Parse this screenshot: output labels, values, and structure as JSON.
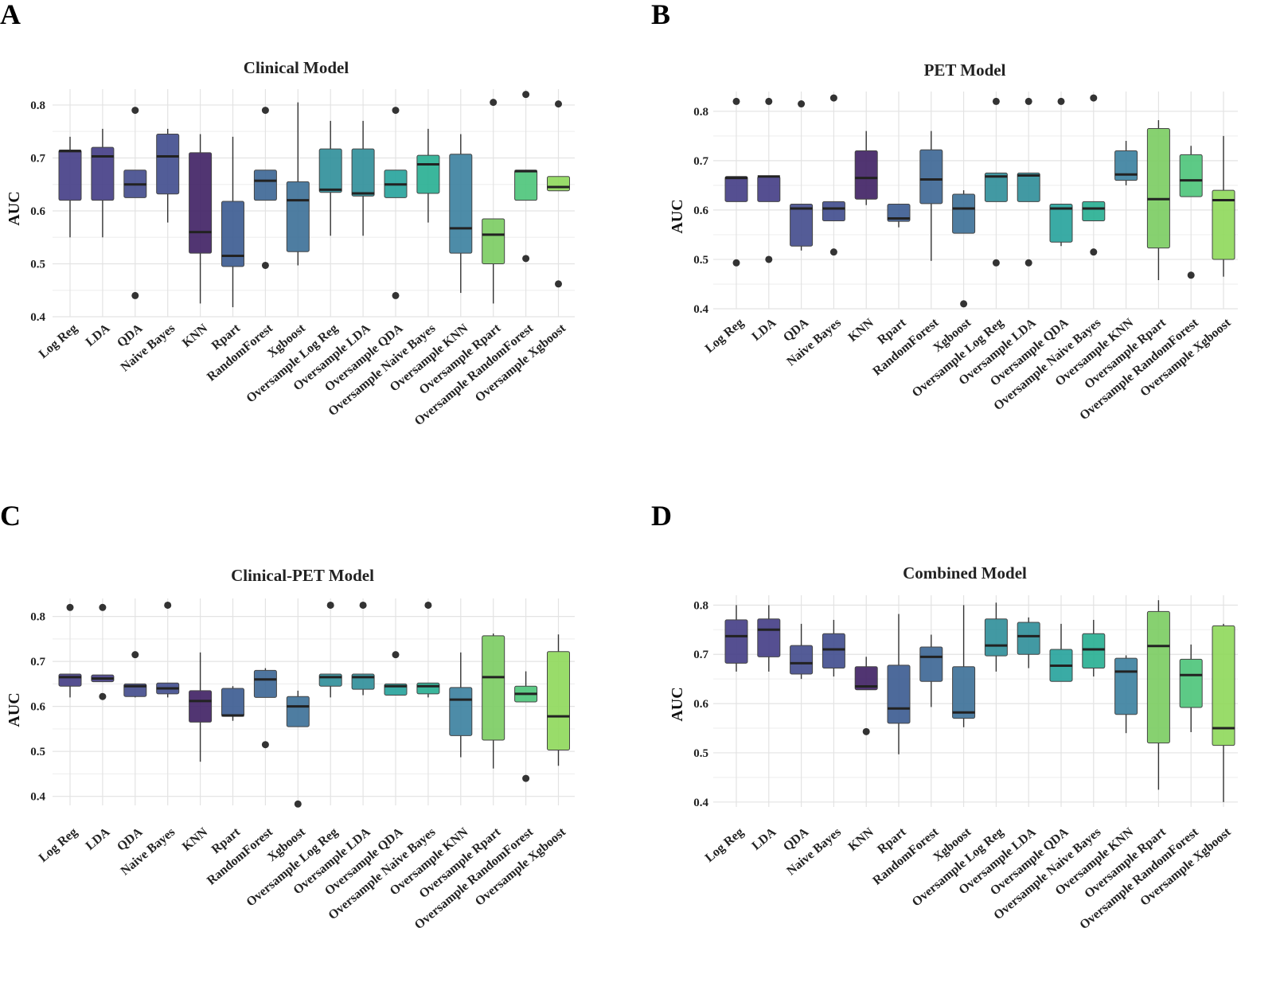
{
  "chart_data": [
    {
      "panel": "A",
      "type": "box",
      "title": "Clinical Model",
      "ylabel": "AUC",
      "ylim": [
        0.4,
        0.83
      ],
      "yticks": [
        0.4,
        0.5,
        0.6,
        0.7,
        0.8
      ],
      "ytick_labels": [
        "0.4",
        "0.5",
        "0.6",
        "0.7",
        "0.8"
      ],
      "categories": [
        "Log Reg",
        "LDA",
        "QDA",
        "Naive Bayes",
        "KNN",
        "Rpart",
        "RandomForest",
        "Xgboost",
        "Oversample Log Reg",
        "Oversample LDA",
        "Oversample QDA",
        "Oversample Naive Bayes",
        "Oversample KNN",
        "Oversample Rpart",
        "Oversample RandomForest",
        "Oversample Xgboost"
      ],
      "boxes": [
        {
          "min": 0.55,
          "q1": 0.62,
          "median": 0.713,
          "q3": 0.715,
          "max": 0.74,
          "outliers": []
        },
        {
          "min": 0.55,
          "q1": 0.62,
          "median": 0.703,
          "q3": 0.72,
          "max": 0.755,
          "outliers": []
        },
        {
          "min": 0.625,
          "q1": 0.625,
          "median": 0.65,
          "q3": 0.677,
          "max": 0.677,
          "outliers": [
            0.79,
            0.44
          ]
        },
        {
          "min": 0.578,
          "q1": 0.632,
          "median": 0.703,
          "q3": 0.745,
          "max": 0.755,
          "outliers": []
        },
        {
          "min": 0.425,
          "q1": 0.52,
          "median": 0.56,
          "q3": 0.71,
          "max": 0.745,
          "outliers": []
        },
        {
          "min": 0.418,
          "q1": 0.495,
          "median": 0.515,
          "q3": 0.618,
          "max": 0.74,
          "outliers": []
        },
        {
          "min": 0.62,
          "q1": 0.62,
          "median": 0.657,
          "q3": 0.677,
          "max": 0.677,
          "outliers": [
            0.79,
            0.497
          ]
        },
        {
          "min": 0.497,
          "q1": 0.523,
          "median": 0.62,
          "q3": 0.655,
          "max": 0.805,
          "outliers": []
        },
        {
          "min": 0.553,
          "q1": 0.635,
          "median": 0.64,
          "q3": 0.717,
          "max": 0.77,
          "outliers": []
        },
        {
          "min": 0.553,
          "q1": 0.628,
          "median": 0.633,
          "q3": 0.717,
          "max": 0.77,
          "outliers": []
        },
        {
          "min": 0.625,
          "q1": 0.625,
          "median": 0.65,
          "q3": 0.677,
          "max": 0.677,
          "outliers": [
            0.79,
            0.44
          ]
        },
        {
          "min": 0.578,
          "q1": 0.633,
          "median": 0.688,
          "q3": 0.705,
          "max": 0.755,
          "outliers": []
        },
        {
          "min": 0.445,
          "q1": 0.52,
          "median": 0.567,
          "q3": 0.707,
          "max": 0.745,
          "outliers": []
        },
        {
          "min": 0.425,
          "q1": 0.5,
          "median": 0.555,
          "q3": 0.585,
          "max": 0.585,
          "outliers": [
            0.805
          ]
        },
        {
          "min": 0.62,
          "q1": 0.62,
          "median": 0.675,
          "q3": 0.677,
          "max": 0.677,
          "outliers": [
            0.82,
            0.51
          ]
        },
        {
          "min": 0.638,
          "q1": 0.638,
          "median": 0.645,
          "q3": 0.665,
          "max": 0.665,
          "outliers": [
            0.802,
            0.462
          ]
        }
      ]
    },
    {
      "panel": "B",
      "type": "box",
      "title": "PET Model",
      "ylabel": "AUC",
      "ylim": [
        0.4,
        0.84
      ],
      "yticks": [
        0.4,
        0.5,
        0.6,
        0.7,
        0.8
      ],
      "ytick_labels": [
        "0.4",
        "0.5",
        "0.6",
        "0.7",
        "0.8"
      ],
      "categories": [
        "Log Reg",
        "LDA",
        "QDA",
        "Naive Bayes",
        "KNN",
        "Rpart",
        "RandomForest",
        "Xgboost",
        "Oversample Log Reg",
        "Oversample LDA",
        "Oversample QDA",
        "Oversample Naive Bayes",
        "Oversample KNN",
        "Oversample Rpart",
        "Oversample RandomForest",
        "Oversample Xgboost"
      ],
      "boxes": [
        {
          "min": 0.617,
          "q1": 0.617,
          "median": 0.665,
          "q3": 0.668,
          "max": 0.668,
          "outliers": [
            0.82,
            0.493
          ]
        },
        {
          "min": 0.617,
          "q1": 0.617,
          "median": 0.668,
          "q3": 0.668,
          "max": 0.668,
          "outliers": [
            0.82,
            0.5
          ]
        },
        {
          "min": 0.518,
          "q1": 0.527,
          "median": 0.603,
          "q3": 0.612,
          "max": 0.612,
          "outliers": [
            0.815
          ]
        },
        {
          "min": 0.578,
          "q1": 0.578,
          "median": 0.603,
          "q3": 0.617,
          "max": 0.617,
          "outliers": [
            0.827,
            0.515
          ]
        },
        {
          "min": 0.61,
          "q1": 0.622,
          "median": 0.665,
          "q3": 0.72,
          "max": 0.76,
          "outliers": []
        },
        {
          "min": 0.565,
          "q1": 0.577,
          "median": 0.583,
          "q3": 0.612,
          "max": 0.612,
          "outliers": []
        },
        {
          "min": 0.497,
          "q1": 0.613,
          "median": 0.662,
          "q3": 0.722,
          "max": 0.76,
          "outliers": []
        },
        {
          "min": 0.553,
          "q1": 0.553,
          "median": 0.603,
          "q3": 0.632,
          "max": 0.64,
          "outliers": [
            0.41
          ]
        },
        {
          "min": 0.617,
          "q1": 0.617,
          "median": 0.668,
          "q3": 0.675,
          "max": 0.675,
          "outliers": [
            0.82,
            0.493
          ]
        },
        {
          "min": 0.617,
          "q1": 0.617,
          "median": 0.67,
          "q3": 0.675,
          "max": 0.675,
          "outliers": [
            0.82,
            0.493
          ]
        },
        {
          "min": 0.527,
          "q1": 0.535,
          "median": 0.603,
          "q3": 0.612,
          "max": 0.612,
          "outliers": [
            0.82
          ]
        },
        {
          "min": 0.578,
          "q1": 0.578,
          "median": 0.603,
          "q3": 0.617,
          "max": 0.617,
          "outliers": [
            0.827,
            0.515
          ]
        },
        {
          "min": 0.65,
          "q1": 0.66,
          "median": 0.672,
          "q3": 0.72,
          "max": 0.74,
          "outliers": []
        },
        {
          "min": 0.458,
          "q1": 0.523,
          "median": 0.622,
          "q3": 0.765,
          "max": 0.782,
          "outliers": []
        },
        {
          "min": 0.627,
          "q1": 0.627,
          "median": 0.66,
          "q3": 0.712,
          "max": 0.73,
          "outliers": [
            0.468
          ]
        },
        {
          "min": 0.465,
          "q1": 0.5,
          "median": 0.62,
          "q3": 0.64,
          "max": 0.75,
          "outliers": []
        }
      ]
    },
    {
      "panel": "C",
      "type": "box",
      "title": "Clinical-PET Model",
      "ylabel": "AUC",
      "ylim": [
        0.38,
        0.84
      ],
      "yticks": [
        0.4,
        0.5,
        0.6,
        0.7,
        0.8
      ],
      "ytick_labels": [
        "0.4",
        "0.5",
        "0.6",
        "0.7",
        "0.8"
      ],
      "categories": [
        "Log Reg",
        "LDA",
        "QDA",
        "Naive Bayes",
        "KNN",
        "Rpart",
        "RandomForest",
        "Xgboost",
        "Oversample Log Reg",
        "Oversample LDA",
        "Oversample QDA",
        "Oversample Naive Bayes",
        "Oversample KNN",
        "Oversample Rpart",
        "Oversample RandomForest",
        "Oversample Xgboost"
      ],
      "boxes": [
        {
          "min": 0.62,
          "q1": 0.645,
          "median": 0.665,
          "q3": 0.672,
          "max": 0.672,
          "outliers": [
            0.82
          ]
        },
        {
          "min": 0.655,
          "q1": 0.655,
          "median": 0.662,
          "q3": 0.67,
          "max": 0.67,
          "outliers": [
            0.82,
            0.622
          ]
        },
        {
          "min": 0.62,
          "q1": 0.622,
          "median": 0.645,
          "q3": 0.65,
          "max": 0.65,
          "outliers": [
            0.715
          ]
        },
        {
          "min": 0.62,
          "q1": 0.628,
          "median": 0.64,
          "q3": 0.652,
          "max": 0.652,
          "outliers": [
            0.825
          ]
        },
        {
          "min": 0.477,
          "q1": 0.565,
          "median": 0.612,
          "q3": 0.635,
          "max": 0.72,
          "outliers": []
        },
        {
          "min": 0.568,
          "q1": 0.578,
          "median": 0.58,
          "q3": 0.64,
          "max": 0.645,
          "outliers": []
        },
        {
          "min": 0.62,
          "q1": 0.62,
          "median": 0.66,
          "q3": 0.68,
          "max": 0.685,
          "outliers": [
            0.515
          ]
        },
        {
          "min": 0.555,
          "q1": 0.555,
          "median": 0.6,
          "q3": 0.622,
          "max": 0.635,
          "outliers": [
            0.383
          ]
        },
        {
          "min": 0.62,
          "q1": 0.645,
          "median": 0.665,
          "q3": 0.672,
          "max": 0.672,
          "outliers": [
            0.825
          ]
        },
        {
          "min": 0.625,
          "q1": 0.638,
          "median": 0.665,
          "q3": 0.672,
          "max": 0.672,
          "outliers": [
            0.825
          ]
        },
        {
          "min": 0.625,
          "q1": 0.625,
          "median": 0.645,
          "q3": 0.65,
          "max": 0.65,
          "outliers": [
            0.715
          ]
        },
        {
          "min": 0.62,
          "q1": 0.628,
          "median": 0.645,
          "q3": 0.652,
          "max": 0.652,
          "outliers": [
            0.825
          ]
        },
        {
          "min": 0.487,
          "q1": 0.535,
          "median": 0.615,
          "q3": 0.642,
          "max": 0.72,
          "outliers": []
        },
        {
          "min": 0.462,
          "q1": 0.525,
          "median": 0.665,
          "q3": 0.757,
          "max": 0.762,
          "outliers": []
        },
        {
          "min": 0.61,
          "q1": 0.61,
          "median": 0.628,
          "q3": 0.645,
          "max": 0.678,
          "outliers": [
            0.44
          ]
        },
        {
          "min": 0.468,
          "q1": 0.503,
          "median": 0.578,
          "q3": 0.722,
          "max": 0.76,
          "outliers": []
        }
      ]
    },
    {
      "panel": "D",
      "type": "box",
      "title": "Combined Model",
      "ylabel": "AUC",
      "ylim": [
        0.39,
        0.82
      ],
      "yticks": [
        0.4,
        0.5,
        0.6,
        0.7,
        0.8
      ],
      "ytick_labels": [
        "0.4",
        "0.5",
        "0.6",
        "0.7",
        "0.8"
      ],
      "categories": [
        "Log Reg",
        "LDA",
        "QDA",
        "Naive Bayes",
        "KNN",
        "Rpart",
        "RandomForest",
        "Xgboost",
        "Oversample Log Reg",
        "Oversample LDA",
        "Oversample QDA",
        "Oversample Naive Bayes",
        "Oversample KNN",
        "Oversample Rpart",
        "Oversample RandomForest",
        "Oversample Xgboost"
      ],
      "boxes": [
        {
          "min": 0.665,
          "q1": 0.682,
          "median": 0.737,
          "q3": 0.77,
          "max": 0.8,
          "outliers": []
        },
        {
          "min": 0.665,
          "q1": 0.695,
          "median": 0.75,
          "q3": 0.772,
          "max": 0.8,
          "outliers": []
        },
        {
          "min": 0.65,
          "q1": 0.66,
          "median": 0.682,
          "q3": 0.718,
          "max": 0.762,
          "outliers": []
        },
        {
          "min": 0.655,
          "q1": 0.672,
          "median": 0.71,
          "q3": 0.742,
          "max": 0.77,
          "outliers": []
        },
        {
          "min": 0.628,
          "q1": 0.628,
          "median": 0.635,
          "q3": 0.675,
          "max": 0.695,
          "outliers": [
            0.543
          ]
        },
        {
          "min": 0.497,
          "q1": 0.56,
          "median": 0.59,
          "q3": 0.678,
          "max": 0.782,
          "outliers": []
        },
        {
          "min": 0.593,
          "q1": 0.645,
          "median": 0.695,
          "q3": 0.715,
          "max": 0.74,
          "outliers": []
        },
        {
          "min": 0.552,
          "q1": 0.57,
          "median": 0.582,
          "q3": 0.675,
          "max": 0.8,
          "outliers": []
        },
        {
          "min": 0.665,
          "q1": 0.697,
          "median": 0.718,
          "q3": 0.772,
          "max": 0.805,
          "outliers": []
        },
        {
          "min": 0.672,
          "q1": 0.7,
          "median": 0.737,
          "q3": 0.765,
          "max": 0.775,
          "outliers": []
        },
        {
          "min": 0.645,
          "q1": 0.645,
          "median": 0.677,
          "q3": 0.71,
          "max": 0.762,
          "outliers": []
        },
        {
          "min": 0.655,
          "q1": 0.672,
          "median": 0.71,
          "q3": 0.742,
          "max": 0.77,
          "outliers": []
        },
        {
          "min": 0.54,
          "q1": 0.578,
          "median": 0.665,
          "q3": 0.692,
          "max": 0.698,
          "outliers": []
        },
        {
          "min": 0.425,
          "q1": 0.52,
          "median": 0.717,
          "q3": 0.787,
          "max": 0.81,
          "outliers": []
        },
        {
          "min": 0.542,
          "q1": 0.592,
          "median": 0.658,
          "q3": 0.69,
          "max": 0.72,
          "outliers": []
        },
        {
          "min": 0.4,
          "q1": 0.515,
          "median": 0.55,
          "q3": 0.758,
          "max": 0.762,
          "outliers": []
        }
      ]
    }
  ],
  "palette": [
    "#433c85",
    "#433c85",
    "#414a8c",
    "#3f4b8d",
    "#3e1f63",
    "#3a5a90",
    "#3b6594",
    "#3b6f97",
    "#2d8e99",
    "#2d8e99",
    "#25a29b",
    "#26ae91",
    "#3a7f9e",
    "#7acc61",
    "#4bc479",
    "#8ed85a"
  ]
}
